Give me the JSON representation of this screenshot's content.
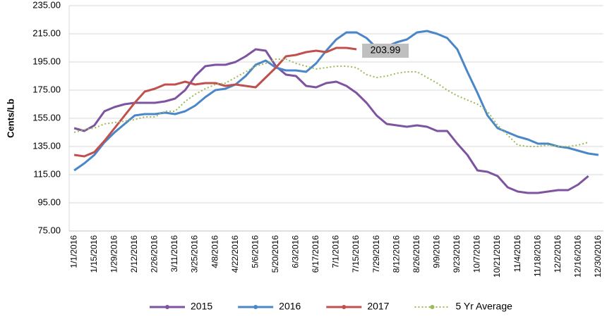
{
  "chart_data": {
    "type": "line",
    "y_label": "Cents/Lb",
    "categories": [
      "1/1/2016",
      null,
      "1/15/2016",
      null,
      "1/29/2016",
      null,
      "2/12/2016",
      null,
      "2/26/2016",
      null,
      "3/11/2016",
      null,
      "3/25/2016",
      null,
      "4/8/2016",
      null,
      "4/22/2016",
      null,
      "5/6/2016",
      null,
      "5/20/2016",
      null,
      "6/3/2016",
      null,
      "6/17/2016",
      null,
      "7/1/2016",
      null,
      "7/15/2016",
      null,
      "7/29/2016",
      null,
      "8/12/2016",
      null,
      "8/26/2016",
      null,
      "9/9/2016",
      null,
      "9/23/2016",
      null,
      "10/7/2016",
      null,
      "10/21/2016",
      null,
      "11/4/2016",
      null,
      "11/18/2016",
      null,
      "12/2/2016",
      null,
      "12/16/2016",
      null,
      "12/30/2016"
    ],
    "series": [
      {
        "name": "2015",
        "color": "#7e53a0",
        "dash": false,
        "values": [
          148,
          146,
          150,
          160,
          163,
          165,
          166,
          166,
          166,
          167,
          169,
          175,
          185,
          192,
          193,
          193,
          195,
          199,
          204,
          203,
          192,
          186,
          185,
          178,
          177,
          180,
          181,
          178,
          173,
          166,
          157,
          151,
          150,
          149,
          150,
          149,
          146,
          146,
          137,
          129,
          118,
          117,
          114,
          106,
          103,
          102,
          102,
          103,
          104,
          104,
          108,
          114,
          null
        ]
      },
      {
        "name": "2016",
        "color": "#4a86c8",
        "dash": false,
        "values": [
          118,
          123,
          129,
          138,
          145,
          151,
          157,
          158,
          158,
          159,
          158,
          160,
          164,
          170,
          175,
          176,
          179,
          185,
          193,
          196,
          191,
          189,
          189,
          188,
          194,
          203,
          211,
          216,
          216,
          212,
          205,
          206,
          209,
          211,
          216,
          217,
          215,
          212,
          204,
          188,
          173,
          157,
          148,
          145,
          142,
          140,
          137,
          137,
          135,
          134,
          132,
          130,
          129
        ]
      },
      {
        "name": "2017",
        "color": "#c0504d",
        "dash": false,
        "label_index": 28,
        "values": [
          129,
          128,
          131,
          139,
          148,
          157,
          166,
          174,
          176,
          179,
          179,
          181,
          179,
          180,
          180,
          178,
          179,
          178,
          177,
          184,
          191,
          199,
          200,
          202,
          203,
          202,
          205,
          205,
          203.99,
          null,
          null,
          null,
          null,
          null,
          null,
          null,
          null,
          null,
          null,
          null,
          null,
          null,
          null,
          null,
          null,
          null,
          null,
          null,
          null,
          null,
          null,
          null,
          null
        ]
      },
      {
        "name": "5 Yr Average",
        "color": "#9bbb59",
        "dash": true,
        "values": [
          145,
          147,
          148,
          151,
          152,
          153,
          154,
          156,
          156,
          160,
          160,
          167,
          172,
          176,
          179,
          180,
          184,
          188,
          192,
          194,
          197,
          197,
          194,
          192,
          190,
          191,
          192,
          192,
          191,
          186,
          184,
          185,
          187,
          188,
          188,
          184,
          180,
          175,
          171,
          168,
          165,
          160,
          150,
          143,
          136,
          135,
          135,
          136,
          135,
          135,
          136,
          138,
          null
        ]
      }
    ],
    "ylim": [
      75,
      235
    ],
    "yticks": [
      {
        "value": 75,
        "label": "75.00"
      },
      {
        "value": 95,
        "label": "95.00"
      },
      {
        "value": 115,
        "label": "115.00"
      },
      {
        "value": 135,
        "label": "135.00"
      },
      {
        "value": 155,
        "label": "155.00"
      },
      {
        "value": 175,
        "label": "175.00"
      },
      {
        "value": 195,
        "label": "195.00"
      },
      {
        "value": 215,
        "label": "215.00"
      },
      {
        "value": 235,
        "label": "235.00"
      }
    ],
    "grid": true,
    "legend": "bottom"
  }
}
